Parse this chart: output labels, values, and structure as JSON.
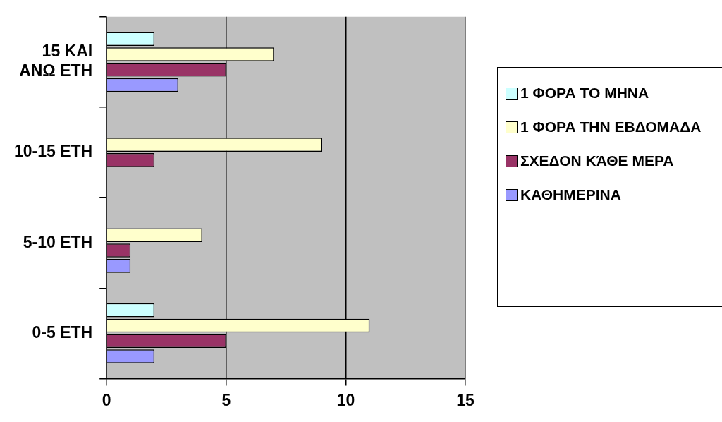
{
  "chart_data": {
    "type": "bar",
    "orientation": "horizontal",
    "categories": [
      "15 ΚΑΙ ΑΝΩ ΕΤΗ",
      "10-15 ΕΤΗ",
      "5-10 ΕΤΗ",
      "0-5 ΕΤΗ"
    ],
    "series": [
      {
        "name": "1 ΦΟΡΑ ΤΟ ΜΗΝΑ",
        "color": "#ccffff",
        "values": [
          2,
          0,
          0,
          2
        ]
      },
      {
        "name": "1 ΦΟΡΑ ΤΗΝ ΕΒΔΟΜΑΔΑ",
        "color": "#ffffcc",
        "values": [
          7,
          9,
          4,
          11
        ]
      },
      {
        "name": "ΣΧΕΔΟΝ ΚΆΘΕ ΜΕΡΑ",
        "color": "#993366",
        "values": [
          5,
          2,
          1,
          5
        ]
      },
      {
        "name": "ΚΑΘΗΜΕΡΙΝΑ",
        "color": "#9999ff",
        "values": [
          3,
          0,
          1,
          2
        ]
      }
    ],
    "xlim": [
      0,
      15
    ],
    "xticks": [
      0,
      5,
      10,
      15
    ],
    "grid": "x",
    "legend": "right"
  }
}
